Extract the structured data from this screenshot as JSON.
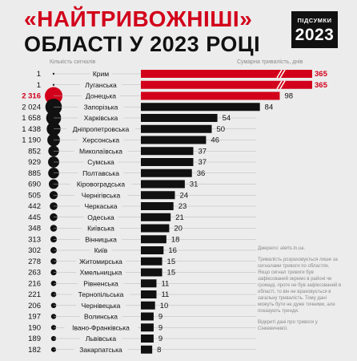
{
  "header": {
    "title_line1": "«НАЙТРИВОЖНІШІ»",
    "title_line2": "ОБЛАСТІ У 2023 РОЦІ",
    "badge_top": "ПІДСУМКИ",
    "badge_year": "2023"
  },
  "side_note": {
    "source": "Джерело: alerts.in.ua.",
    "text1": "Тривалість розраховується лише за сигналами тривоги по областях. Якщо сигнал тривоги був зафіксований окремо в районі чи громаді, проте не був зафіксований в області, то він не враховується в загальну тривалість. Тому дані можуть бути не дуже точними, але показують тренди.",
    "text2": "Відкриті дані про тривоги у Сінкевичевої."
  },
  "colors": {
    "accent": "#d2001a",
    "bar": "#111111",
    "background": "#ececec"
  },
  "chart_data": {
    "type": "bar",
    "left_label": "Кількість сигналів",
    "right_label": "Сумарна тривалість, днів",
    "categories": [
      "Крим",
      "Луганська",
      "Донецька",
      "Запорізька",
      "Харківська",
      "Дніпропетровська",
      "Херсонська",
      "Миколаївська",
      "Сумська",
      "Полтавська",
      "Кіровоградська",
      "Чернігівська",
      "Черкаська",
      "Одеська",
      "Київська",
      "Вінницька",
      "Київ",
      "Житомирська",
      "Хмельницька",
      "Рівненська",
      "Тернопільська",
      "Чернівецька",
      "Волинська",
      "Івано-Франківська",
      "Львівська",
      "Закарпатська"
    ],
    "signals": [
      1,
      1,
      2316,
      2024,
      1658,
      1438,
      1190,
      852,
      929,
      885,
      690,
      505,
      442,
      445,
      348,
      313,
      302,
      278,
      263,
      216,
      221,
      206,
      197,
      190,
      189,
      182
    ],
    "signal_labels": [
      "1",
      "1",
      "2 316",
      "2 024",
      "1 658",
      "1 438",
      "1 190",
      "852",
      "929",
      "885",
      "690",
      "505",
      "442",
      "445",
      "348",
      "313",
      "302",
      "278",
      "263",
      "216",
      "221",
      "206",
      "197",
      "190",
      "189",
      "182"
    ],
    "duration_days": [
      365,
      365,
      98,
      84,
      54,
      50,
      46,
      37,
      37,
      36,
      31,
      24,
      23,
      21,
      20,
      18,
      16,
      15,
      15,
      11,
      11,
      10,
      9,
      9,
      9,
      8
    ],
    "highlight": [
      0,
      1,
      2
    ],
    "broken_axis": [
      0,
      1
    ]
  }
}
